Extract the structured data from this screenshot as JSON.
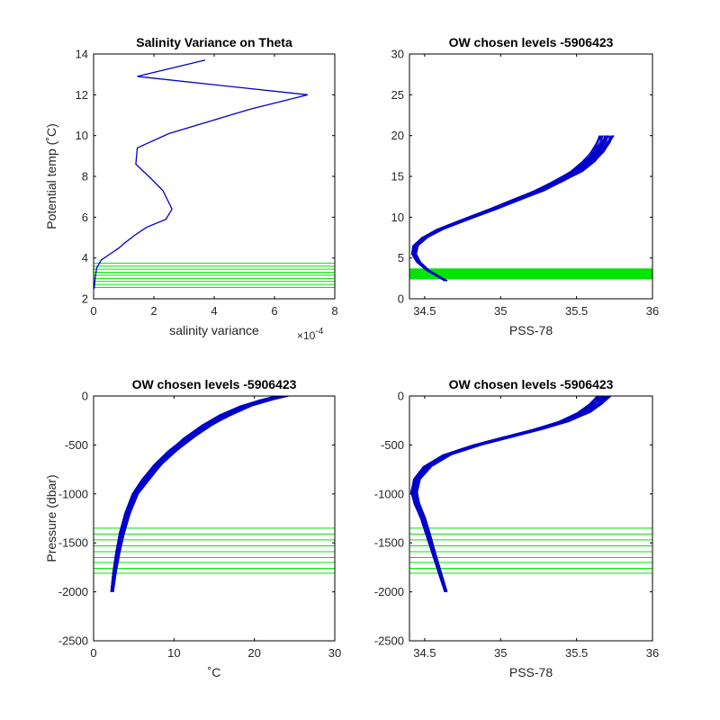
{
  "chart_data": [
    {
      "id": "p1",
      "type": "line",
      "title": "Salinity Variance on Theta",
      "xlabel": "salinity variance",
      "ylabel": "Potential temp (˚C)",
      "x_multiplier_base": "×10",
      "x_multiplier_exp": "-4",
      "xlim": [
        0,
        8
      ],
      "ylim": [
        2,
        14
      ],
      "xticks": [
        0,
        2,
        4,
        6,
        8
      ],
      "yticks": [
        2,
        4,
        6,
        8,
        10,
        12,
        14
      ],
      "xtick_labels": [
        "0",
        "2",
        "4",
        "6",
        "8"
      ],
      "ytick_labels": [
        "2",
        "4",
        "6",
        "8",
        "10",
        "12",
        "14"
      ],
      "series": [
        {
          "color": "#0000cc",
          "x": [
            3.7,
            1.45,
            7.1,
            5.2,
            2.5,
            1.45,
            1.4,
            1.9,
            2.3,
            2.6,
            2.4,
            1.75,
            1.35,
            1.0,
            0.85,
            0.25,
            0.1,
            0.05,
            0.02
          ],
          "y": [
            13.7,
            12.9,
            12.0,
            11.3,
            10.1,
            9.4,
            8.6,
            7.9,
            7.3,
            6.4,
            5.9,
            5.5,
            5.1,
            4.7,
            4.5,
            3.9,
            3.5,
            3.0,
            2.5
          ]
        }
      ],
      "hlines": {
        "color": "#00e600",
        "values": [
          2.55,
          2.7,
          2.85,
          3.0,
          3.15,
          3.3,
          3.45,
          3.6,
          3.75
        ]
      }
    },
    {
      "id": "p2",
      "type": "line",
      "title": "OW chosen levels -5906423",
      "xlabel": "PSS-78",
      "ylabel": "",
      "xlim": [
        34.4,
        36
      ],
      "ylim": [
        0,
        30
      ],
      "xticks": [
        34.5,
        35,
        35.5,
        36
      ],
      "yticks": [
        0,
        5,
        10,
        15,
        20,
        25,
        30
      ],
      "xtick_labels": [
        "34.5",
        "35",
        "35.5",
        "36"
      ],
      "ytick_labels": [
        "0",
        "5",
        "10",
        "15",
        "20",
        "25",
        "30"
      ],
      "series": [
        {
          "color": "#0000cc",
          "profile": true,
          "x": [
            34.64,
            34.52,
            34.46,
            34.43,
            34.44,
            34.5,
            34.6,
            34.75,
            34.95,
            35.1,
            35.25,
            35.38,
            35.5,
            35.58,
            35.64,
            35.68,
            35.7
          ],
          "y": [
            2.2,
            3.5,
            4.5,
            5.5,
            6.5,
            7.5,
            8.5,
            9.6,
            11.0,
            12.1,
            13.2,
            14.4,
            15.6,
            16.8,
            18.0,
            19.2,
            20.0
          ]
        }
      ],
      "hlines": {
        "color": "#00e600",
        "values": [
          2.5,
          2.6,
          2.7,
          2.8,
          2.9,
          3.0,
          3.1,
          3.2,
          3.3,
          3.4,
          3.5,
          3.6
        ]
      }
    },
    {
      "id": "p3",
      "type": "line",
      "title": "OW chosen levels -5906423",
      "xlabel": "˚C",
      "ylabel": "Pressure (dbar)",
      "xlim": [
        0,
        30
      ],
      "ylim": [
        -2500,
        0
      ],
      "xticks": [
        0,
        10,
        20,
        30
      ],
      "yticks": [
        -2500,
        -2000,
        -1500,
        -1000,
        -500,
        0
      ],
      "xtick_labels": [
        "0",
        "10",
        "20",
        "30"
      ],
      "ytick_labels": [
        "-2500",
        "-2000",
        "-1500",
        "-1000",
        "-500",
        "0"
      ],
      "series": [
        {
          "color": "#0000cc",
          "profile": true,
          "x": [
            2.3,
            2.6,
            3.0,
            3.5,
            4.2,
            5.2,
            6.5,
            8.0,
            9.8,
            11.8,
            14.0,
            16.5,
            19.0,
            21.5,
            23.5
          ],
          "y": [
            -2000,
            -1800,
            -1600,
            -1400,
            -1200,
            -1000,
            -850,
            -700,
            -560,
            -430,
            -300,
            -190,
            -100,
            -40,
            0
          ]
        }
      ],
      "hlines": {
        "color": "#00e600",
        "values": [
          -1350,
          -1410,
          -1470,
          -1530,
          -1590,
          -1650,
          -1700,
          -1760,
          -1810
        ]
      }
    },
    {
      "id": "p4",
      "type": "line",
      "title": "OW chosen levels -5906423",
      "xlabel": "PSS-78",
      "ylabel": "",
      "xlim": [
        34.4,
        36
      ],
      "ylim": [
        -2500,
        0
      ],
      "xticks": [
        34.5,
        35,
        35.5,
        36
      ],
      "yticks": [
        -2500,
        -2000,
        -1500,
        -1000,
        -500,
        0
      ],
      "xtick_labels": [
        "34.5",
        "35",
        "35.5",
        "36"
      ],
      "ytick_labels": [
        "-2500",
        "-2000",
        "-1500",
        "-1000",
        "-500",
        "0"
      ],
      "series": [
        {
          "color": "#0000cc",
          "profile": true,
          "x": [
            34.64,
            34.6,
            34.56,
            34.52,
            34.49,
            34.45,
            34.43,
            34.45,
            34.52,
            34.65,
            34.85,
            35.05,
            35.25,
            35.42,
            35.55,
            35.63,
            35.68
          ],
          "y": [
            -2000,
            -1800,
            -1600,
            -1400,
            -1250,
            -1100,
            -980,
            -850,
            -720,
            -600,
            -500,
            -420,
            -340,
            -260,
            -170,
            -80,
            0
          ]
        }
      ],
      "hlines": {
        "color": "#00e600",
        "values": [
          -1350,
          -1410,
          -1470,
          -1530,
          -1590,
          -1650,
          -1700,
          -1760,
          -1810
        ]
      }
    }
  ]
}
